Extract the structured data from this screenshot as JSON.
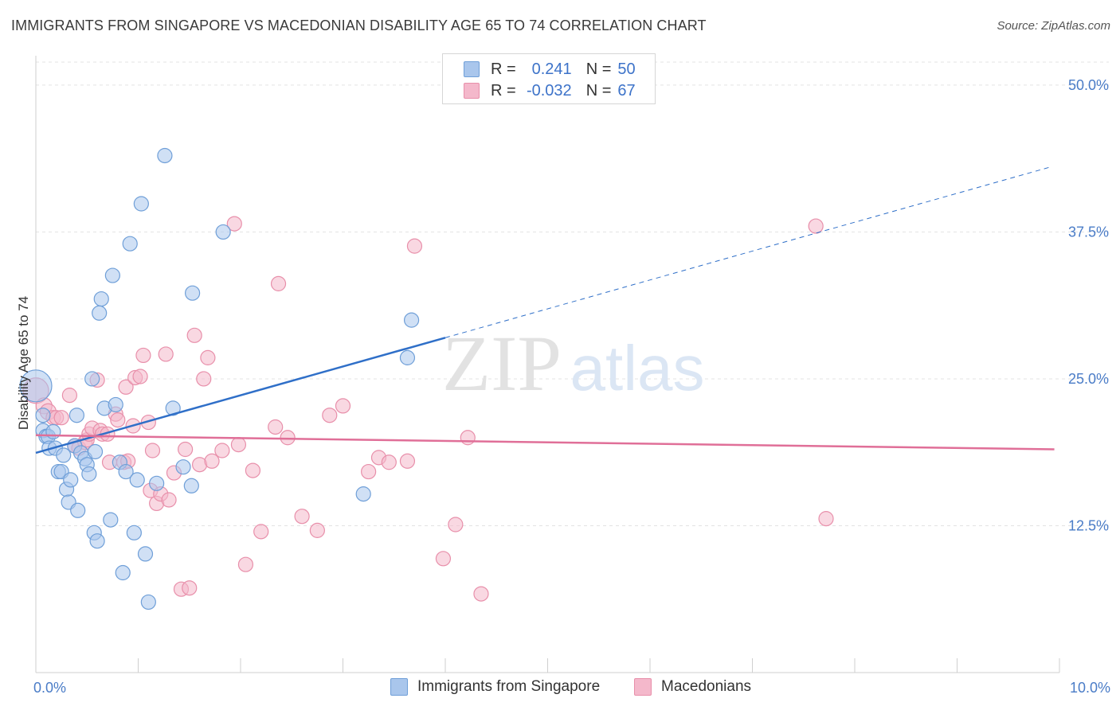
{
  "title": "IMMIGRANTS FROM SINGAPORE VS MACEDONIAN DISABILITY AGE 65 TO 74 CORRELATION CHART",
  "source": "Source: ZipAtlas.com",
  "watermark": {
    "zip": "ZIP",
    "atlas": "atlas"
  },
  "legend": {
    "r_label": "R =",
    "n_label": "N =",
    "series1": {
      "r": "0.241",
      "n": "50"
    },
    "series2": {
      "r": "-0.032",
      "n": "67"
    }
  },
  "colors": {
    "blue_fill": "#a9c6ec",
    "blue_stroke": "#6f9fd8",
    "blue_line": "#2f6fc8",
    "pink_fill": "#f4b8cb",
    "pink_stroke": "#e88faa",
    "pink_line": "#e06f98",
    "tick_text": "#4a7cc7",
    "grid": "#e3e3e3"
  },
  "chart_data": {
    "type": "scatter",
    "title": "IMMIGRANTS FROM SINGAPORE VS MACEDONIAN DISABILITY AGE 65 TO 74 CORRELATION CHART",
    "xlabel": "",
    "ylabel": "Disability Age 65 to 74",
    "xlim": [
      0,
      10
    ],
    "ylim": [
      0,
      52.5
    ],
    "x_tick_labels": [
      "0.0%",
      "10.0%"
    ],
    "y_ticks": [
      12.5,
      25.0,
      37.5,
      50.0
    ],
    "y_tick_labels": [
      "12.5%",
      "25.0%",
      "37.5%",
      "50.0%"
    ],
    "series": [
      {
        "name": "Immigrants from Singapore",
        "color": "blue",
        "trend": {
          "x0": 0.0,
          "y0": 18.7,
          "x1": 4.0,
          "y1": 28.5,
          "dash_to_x": 9.9,
          "dash_to_y": 43.0
        },
        "points": [
          [
            0.0,
            24.4,
            20
          ],
          [
            0.07,
            21.9,
            9
          ],
          [
            0.07,
            20.6,
            9
          ],
          [
            0.1,
            20.1,
            9
          ],
          [
            0.12,
            20.1,
            9
          ],
          [
            0.13,
            19.1,
            9
          ],
          [
            0.17,
            20.5,
            9
          ],
          [
            0.19,
            19.1,
            9
          ],
          [
            0.22,
            17.1,
            9
          ],
          [
            0.25,
            17.1,
            9
          ],
          [
            0.27,
            18.5,
            9
          ],
          [
            0.3,
            15.6,
            9
          ],
          [
            0.32,
            14.5,
            9
          ],
          [
            0.34,
            16.4,
            9
          ],
          [
            0.38,
            19.3,
            9
          ],
          [
            0.4,
            21.9,
            9
          ],
          [
            0.41,
            13.8,
            9
          ],
          [
            0.44,
            18.7,
            9
          ],
          [
            0.48,
            18.2,
            9
          ],
          [
            0.5,
            17.7,
            9
          ],
          [
            0.52,
            16.9,
            9
          ],
          [
            0.55,
            25.0,
            9
          ],
          [
            0.57,
            11.9,
            9
          ],
          [
            0.58,
            18.8,
            9
          ],
          [
            0.6,
            11.2,
            9
          ],
          [
            0.62,
            30.6,
            9
          ],
          [
            0.64,
            31.8,
            9
          ],
          [
            0.67,
            22.5,
            9
          ],
          [
            0.73,
            13.0,
            9
          ],
          [
            0.75,
            33.8,
            9
          ],
          [
            0.78,
            22.8,
            9
          ],
          [
            0.82,
            17.9,
            9
          ],
          [
            0.85,
            8.5,
            9
          ],
          [
            0.88,
            17.1,
            9
          ],
          [
            0.92,
            36.5,
            9
          ],
          [
            0.96,
            11.9,
            9
          ],
          [
            0.99,
            16.4,
            9
          ],
          [
            1.03,
            39.9,
            9
          ],
          [
            1.07,
            10.1,
            9
          ],
          [
            1.1,
            6.0,
            9
          ],
          [
            1.18,
            16.1,
            9
          ],
          [
            1.26,
            44.0,
            9
          ],
          [
            1.34,
            22.5,
            9
          ],
          [
            1.44,
            17.5,
            9
          ],
          [
            1.52,
            15.9,
            9
          ],
          [
            1.53,
            32.3,
            9
          ],
          [
            1.83,
            37.5,
            9
          ],
          [
            3.2,
            15.2,
            9
          ],
          [
            3.63,
            26.8,
            9
          ],
          [
            3.67,
            30.0,
            9
          ]
        ]
      },
      {
        "name": "Macedonians",
        "color": "pink",
        "trend": {
          "x0": 0.0,
          "y0": 20.2,
          "x1": 9.95,
          "y1": 19.0
        },
        "points": [
          [
            0.0,
            24.0,
            16
          ],
          [
            0.08,
            22.7,
            10
          ],
          [
            0.12,
            22.2,
            10
          ],
          [
            0.17,
            21.7,
            9
          ],
          [
            0.2,
            21.7,
            9
          ],
          [
            0.25,
            21.7,
            9
          ],
          [
            0.33,
            23.6,
            9
          ],
          [
            0.38,
            19.3,
            9
          ],
          [
            0.42,
            19.1,
            9
          ],
          [
            0.48,
            19.6,
            9
          ],
          [
            0.5,
            19.8,
            9
          ],
          [
            0.52,
            20.3,
            9
          ],
          [
            0.55,
            20.8,
            9
          ],
          [
            0.6,
            24.9,
            9
          ],
          [
            0.63,
            20.6,
            9
          ],
          [
            0.65,
            20.3,
            9
          ],
          [
            0.7,
            20.3,
            9
          ],
          [
            0.72,
            17.9,
            9
          ],
          [
            0.78,
            22.0,
            9
          ],
          [
            0.8,
            21.5,
            9
          ],
          [
            0.86,
            17.9,
            9
          ],
          [
            0.88,
            24.3,
            9
          ],
          [
            0.9,
            18.0,
            9
          ],
          [
            0.95,
            21.0,
            9
          ],
          [
            0.97,
            25.1,
            9
          ],
          [
            1.02,
            25.2,
            9
          ],
          [
            1.05,
            27.0,
            9
          ],
          [
            1.1,
            21.3,
            9
          ],
          [
            1.12,
            15.5,
            9
          ],
          [
            1.14,
            18.9,
            9
          ],
          [
            1.18,
            14.4,
            9
          ],
          [
            1.22,
            15.2,
            9
          ],
          [
            1.27,
            27.1,
            9
          ],
          [
            1.3,
            14.7,
            9
          ],
          [
            1.35,
            17.0,
            9
          ],
          [
            1.42,
            7.1,
            9
          ],
          [
            1.46,
            19.0,
            9
          ],
          [
            1.5,
            7.2,
            9
          ],
          [
            1.55,
            28.7,
            9
          ],
          [
            1.6,
            17.7,
            9
          ],
          [
            1.64,
            25.0,
            9
          ],
          [
            1.68,
            26.8,
            9
          ],
          [
            1.72,
            18.0,
            9
          ],
          [
            1.82,
            18.9,
            9
          ],
          [
            1.94,
            38.2,
            9
          ],
          [
            1.98,
            19.4,
            9
          ],
          [
            2.05,
            9.2,
            9
          ],
          [
            2.12,
            17.2,
            9
          ],
          [
            2.2,
            12.0,
            9
          ],
          [
            2.34,
            20.9,
            9
          ],
          [
            2.37,
            33.1,
            9
          ],
          [
            2.46,
            20.0,
            9
          ],
          [
            2.6,
            13.3,
            9
          ],
          [
            2.75,
            12.1,
            9
          ],
          [
            2.87,
            21.9,
            9
          ],
          [
            3.0,
            22.7,
            9
          ],
          [
            3.25,
            17.1,
            9
          ],
          [
            3.35,
            18.3,
            9
          ],
          [
            3.45,
            17.9,
            9
          ],
          [
            3.63,
            18.0,
            9
          ],
          [
            3.7,
            36.3,
            9
          ],
          [
            3.98,
            9.7,
            9
          ],
          [
            4.1,
            12.6,
            9
          ],
          [
            4.22,
            20.0,
            9
          ],
          [
            4.35,
            6.7,
            9
          ],
          [
            7.62,
            38.0,
            9
          ],
          [
            7.72,
            13.1,
            9
          ]
        ]
      }
    ]
  },
  "bottom_legend": {
    "series1": "Immigrants from Singapore",
    "series2": "Macedonians"
  }
}
